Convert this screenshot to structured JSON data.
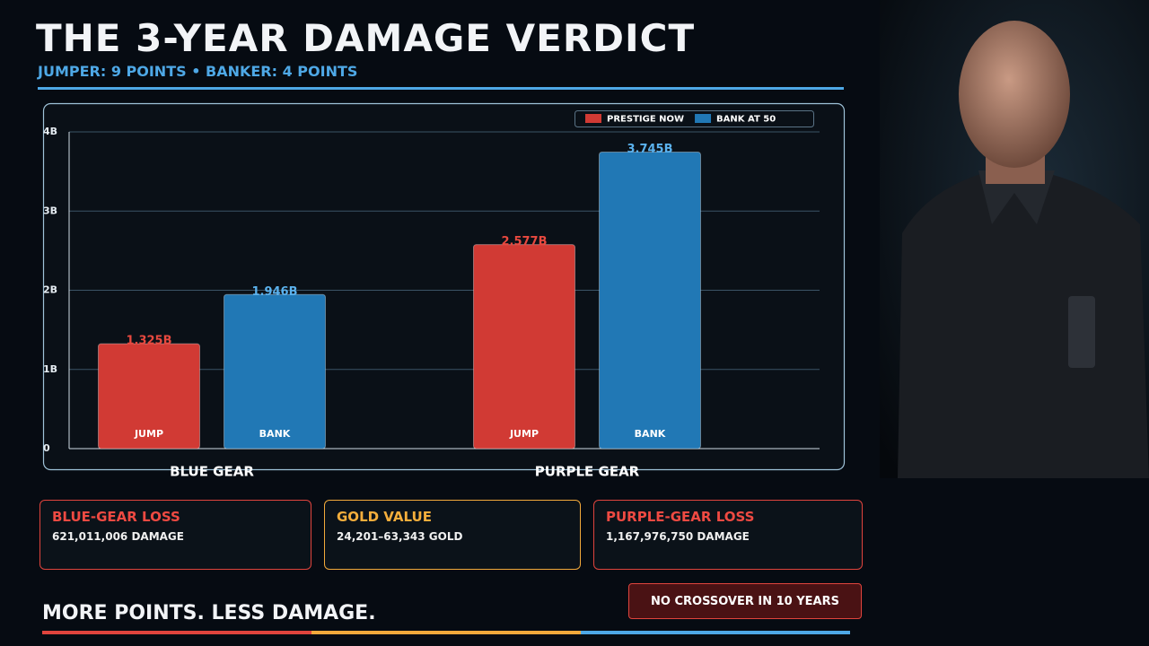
{
  "header": {
    "title": "THE 3-YEAR DAMAGE VERDICT",
    "subtitle": "JUMPER: 9 POINTS • BANKER: 4 POINTS"
  },
  "chart_data": {
    "type": "bar",
    "categories": [
      "BLUE GEAR",
      "PURPLE GEAR"
    ],
    "series": [
      {
        "name": "PRESTIGE NOW",
        "color": "#d13a34",
        "bar_label": "JUMP",
        "values": [
          1.325,
          2.577
        ],
        "value_labels": [
          "1.325B",
          "2.577B"
        ]
      },
      {
        "name": "BANK AT 50",
        "color": "#2178b5",
        "bar_label": "BANK",
        "values": [
          1.946,
          3.745
        ],
        "value_labels": [
          "1.946B",
          "3.745B"
        ]
      }
    ],
    "ylim": [
      0,
      4
    ],
    "yticks": [
      0,
      {
        "value": 1,
        "label": "1B"
      },
      {
        "value": 2,
        "label": "2B"
      },
      {
        "value": 3,
        "label": "3B"
      },
      {
        "value": 4,
        "label": "4B"
      }
    ],
    "grid": true,
    "legend": "top-right"
  },
  "cards": [
    {
      "title": "BLUE-GEAR LOSS",
      "body": "621,011,006 DAMAGE"
    },
    {
      "title": "GOLD VALUE",
      "body": "24,201–63,343 GOLD"
    },
    {
      "title": "PURPLE-GEAR LOSS",
      "body": "1,167,976,750 DAMAGE"
    }
  ],
  "footer": {
    "tagline": "MORE POINTS. LESS DAMAGE.",
    "button": "NO CROSSOVER IN 10 YEARS"
  }
}
